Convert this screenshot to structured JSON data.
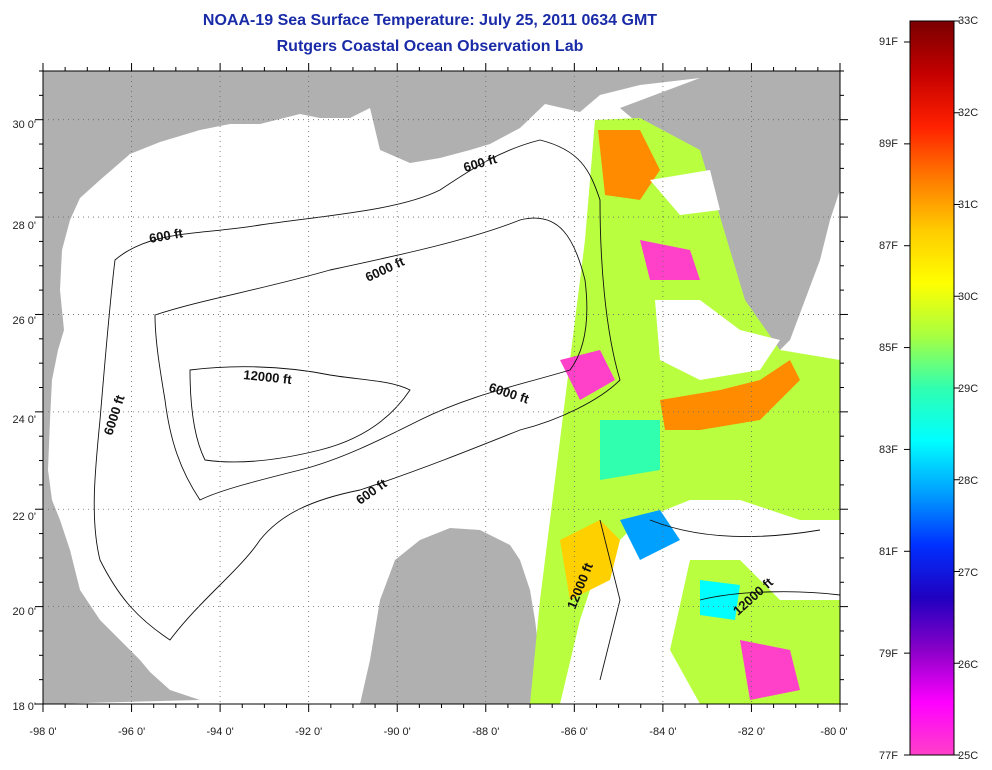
{
  "title": "NOAA-19 Sea Surface Temperature:  July 25, 2011 0634 GMT",
  "subtitle": "Rutgers Coastal Ocean Observation Lab",
  "axes": {
    "x_ticks": [
      "-98 0'",
      "-96 0'",
      "-94 0'",
      "-92 0'",
      "-90 0'",
      "-88 0'",
      "-86 0'",
      "-84 0'",
      "-82 0'",
      "-80 0'"
    ],
    "y_ticks": [
      "30 0'",
      "28 0'",
      "26 0'",
      "24 0'",
      "22 0'",
      "20 0'",
      "18 0'"
    ],
    "lon_range": [
      -98,
      -80
    ],
    "lat_range": [
      18,
      31
    ]
  },
  "contour_labels": [
    "600 ft",
    "600 ft",
    "6000 ft",
    "6000 ft",
    "12000 ft",
    "6000 ft",
    "600 ft",
    "12000 ft",
    "12000 ft"
  ],
  "colorbar": {
    "celsius": [
      "33C",
      "32C",
      "31C",
      "30C",
      "29C",
      "28C",
      "27C",
      "26C",
      "25C"
    ],
    "fahrenheit": [
      "91F",
      "89F",
      "87F",
      "85F",
      "83F",
      "81F",
      "79F",
      "77F"
    ],
    "colors": [
      "#7a0000",
      "#c40000",
      "#ff2000",
      "#ff7a00",
      "#ffcc00",
      "#ffff00",
      "#a8ff40",
      "#30ffb0",
      "#00ffff",
      "#00a0ff",
      "#0030ff",
      "#2000c0",
      "#8a00c8",
      "#ff00ff",
      "#ff40c8"
    ]
  },
  "map_colors": {
    "land": "#b0b0b0",
    "water": "#ffffff",
    "grid": "#888888"
  }
}
